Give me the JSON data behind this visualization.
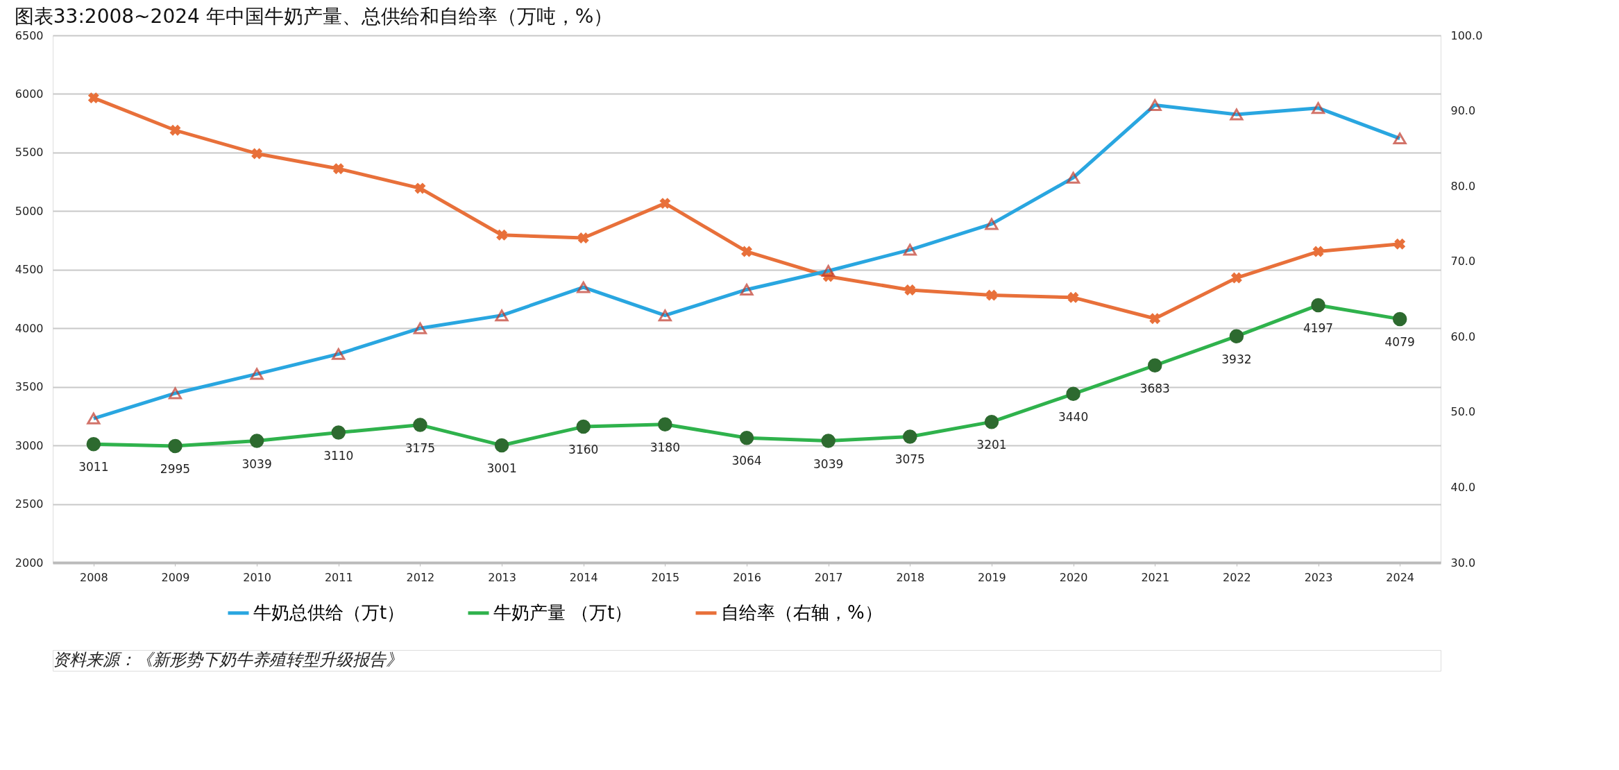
{
  "chart_data": {
    "type": "line",
    "title": "图表33:2008~2024 年中国牛奶产量、总供给和自给率（万吨，%）",
    "categories": [
      "2008",
      "2009",
      "2010",
      "2011",
      "2012",
      "2013",
      "2014",
      "2015",
      "2016",
      "2017",
      "2018",
      "2019",
      "2020",
      "2021",
      "2022",
      "2023",
      "2024"
    ],
    "series": [
      {
        "name": "牛奶总供给（万t）",
        "color": "#29a6e0",
        "marker": "triangle",
        "values": [
          3230,
          3445,
          3610,
          3780,
          4000,
          4110,
          4350,
          4110,
          4330,
          4490,
          4670,
          4890,
          5285,
          5905,
          5825,
          5880,
          5620
        ]
      },
      {
        "name": "牛奶产量 （万t）",
        "color": "#2fb24c",
        "marker": "circle",
        "values": [
          3011,
          2995,
          3039,
          3110,
          3175,
          3001,
          3160,
          3180,
          3064,
          3039,
          3075,
          3201,
          3440,
          3683,
          3932,
          4197,
          4079
        ],
        "value_labels": [
          "3011",
          "2995",
          "3039",
          "3110",
          "3175",
          "3001",
          "3160",
          "3180",
          "3064",
          "3039",
          "3075",
          "3201",
          "3440",
          "3683",
          "3932",
          "4197",
          "4079"
        ]
      },
      {
        "name": "自给率（右轴，%）",
        "color": "#e8703a",
        "marker": "cross",
        "axis": "y2",
        "values": [
          91.7,
          87.4,
          84.3,
          82.3,
          79.7,
          73.5,
          73.1,
          77.7,
          71.3,
          68.0,
          66.2,
          65.5,
          65.2,
          62.4,
          67.8,
          71.3,
          72.3
        ]
      }
    ],
    "ylim": [
      2000,
      6500
    ],
    "yticks": [
      2000,
      2500,
      3000,
      3500,
      4000,
      4500,
      5000,
      5500,
      6000,
      6500
    ],
    "y2lim": [
      30,
      100
    ],
    "y2ticks": [
      {
        "value": 30,
        "label": "30.0"
      },
      {
        "value": 40,
        "label": "40.0"
      },
      {
        "value": 50,
        "label": "50.0"
      },
      {
        "value": 60,
        "label": "60.0"
      },
      {
        "value": 70,
        "label": "70.0"
      },
      {
        "value": 80,
        "label": "80.0"
      },
      {
        "value": 90,
        "label": "90.0"
      },
      {
        "value": 100,
        "label": "100.0"
      }
    ],
    "grid": "y",
    "legend": "bottom",
    "line_style": "solid",
    "annotations": [
      "资料来源：《新形势下奶牛养殖转型升级报告》"
    ]
  }
}
